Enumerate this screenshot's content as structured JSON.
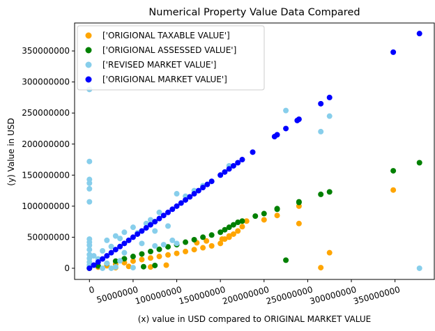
{
  "chart_data": {
    "type": "scatter",
    "title": "Numerical Property Value Data Compared",
    "xlabel": "(x) value in USD compared to ORIGINAL MARKET VALUE",
    "ylabel": "(y) Value in USD",
    "xlim": [
      -17000000,
      395000000
    ],
    "ylim": [
      -18000000,
      395000000
    ],
    "x_ticks": [
      0,
      50000000,
      100000000,
      150000000,
      200000000,
      250000000,
      300000000,
      350000000
    ],
    "x_tick_labels": [
      "0",
      "50000000",
      "100000000",
      "150000000",
      "200000000",
      "250000000",
      "300000000",
      "350000000"
    ],
    "y_ticks": [
      0,
      50000000,
      100000000,
      150000000,
      200000000,
      250000000,
      300000000,
      350000000
    ],
    "y_tick_labels": [
      "0",
      "50000000",
      "100000000",
      "150000000",
      "200000000",
      "250000000",
      "300000000",
      "350000000"
    ],
    "grid": false,
    "legend_position": "top-left",
    "series": [
      {
        "name": "['ORIGIONAL TAXABLE VALUE']",
        "color": "#ffa500",
        "points": [
          [
            0,
            0
          ],
          [
            10000000,
            1800000
          ],
          [
            20000000,
            4000000
          ],
          [
            30000000,
            6500000
          ],
          [
            40000000,
            9000000
          ],
          [
            50000000,
            11500000
          ],
          [
            60000000,
            14000000
          ],
          [
            70000000,
            16500000
          ],
          [
            80000000,
            19000000
          ],
          [
            90000000,
            21500000
          ],
          [
            100000000,
            24000000
          ],
          [
            110000000,
            27000000
          ],
          [
            120000000,
            30000000
          ],
          [
            130000000,
            33000000
          ],
          [
            140000000,
            36000000
          ],
          [
            150000000,
            40000000
          ],
          [
            155000000,
            47000000
          ],
          [
            160000000,
            50000000
          ],
          [
            165000000,
            55000000
          ],
          [
            170000000,
            60000000
          ],
          [
            180000000,
            76000000
          ],
          [
            200000000,
            78000000
          ],
          [
            215000000,
            85000000
          ],
          [
            240000000,
            100000000
          ],
          [
            240000000,
            72000000
          ],
          [
            265000000,
            1000000
          ],
          [
            275000000,
            25000000
          ],
          [
            348000000,
            126000000
          ],
          [
            88000000,
            5000000
          ],
          [
            45000000,
            3000000
          ],
          [
            30000000,
            1000000
          ],
          [
            70000000,
            2000000
          ],
          [
            123000000,
            41000000
          ],
          [
            134000000,
            44000000
          ],
          [
            152000000,
            47000000
          ],
          [
            160000000,
            52000000
          ],
          [
            175000000,
            67000000
          ]
        ]
      },
      {
        "name": "['ORIGIONAL ASSESSED VALUE']",
        "color": "#008000",
        "points": [
          [
            0,
            0
          ],
          [
            10000000,
            3800000
          ],
          [
            20000000,
            7700000
          ],
          [
            30000000,
            11500000
          ],
          [
            40000000,
            15300000
          ],
          [
            50000000,
            19000000
          ],
          [
            60000000,
            23000000
          ],
          [
            70000000,
            27000000
          ],
          [
            80000000,
            30500000
          ],
          [
            90000000,
            34500000
          ],
          [
            100000000,
            38000000
          ],
          [
            110000000,
            42000000
          ],
          [
            120000000,
            46000000
          ],
          [
            130000000,
            50000000
          ],
          [
            140000000,
            53500000
          ],
          [
            150000000,
            58000000
          ],
          [
            155000000,
            62000000
          ],
          [
            160000000,
            66000000
          ],
          [
            165000000,
            70000000
          ],
          [
            170000000,
            74000000
          ],
          [
            175000000,
            76000000
          ],
          [
            190000000,
            84000000
          ],
          [
            200000000,
            88000000
          ],
          [
            215000000,
            96000000
          ],
          [
            215000000,
            95000000
          ],
          [
            240000000,
            107000000
          ],
          [
            240000000,
            106000000
          ],
          [
            265000000,
            119000000
          ],
          [
            275000000,
            123000000
          ],
          [
            348000000,
            157000000
          ],
          [
            378000000,
            170000000
          ],
          [
            225000000,
            13000000
          ],
          [
            75000000,
            4500000
          ],
          [
            62000000,
            2500000
          ]
        ]
      },
      {
        "name": "['REVISED MARKET VALUE']",
        "color": "#87ceeb",
        "points": [
          [
            0,
            288000000
          ],
          [
            0,
            172000000
          ],
          [
            0,
            143000000
          ],
          [
            0,
            137000000
          ],
          [
            0,
            128000000
          ],
          [
            0,
            107000000
          ],
          [
            0,
            47000000
          ],
          [
            0,
            42000000
          ],
          [
            0,
            37000000
          ],
          [
            0,
            30000000
          ],
          [
            0,
            22000000
          ],
          [
            0,
            16000000
          ],
          [
            0,
            10000000
          ],
          [
            0,
            5000000
          ],
          [
            0,
            2000000
          ],
          [
            5000000,
            20000000
          ],
          [
            10000000,
            15000000
          ],
          [
            15000000,
            28000000
          ],
          [
            20000000,
            8000000
          ],
          [
            25000000,
            35000000
          ],
          [
            30000000,
            52000000
          ],
          [
            35000000,
            48000000
          ],
          [
            40000000,
            58000000
          ],
          [
            50000000,
            66000000
          ],
          [
            55000000,
            57000000
          ],
          [
            60000000,
            60000000
          ],
          [
            65000000,
            72000000
          ],
          [
            70000000,
            78000000
          ],
          [
            75000000,
            60000000
          ],
          [
            80000000,
            90000000
          ],
          [
            90000000,
            68000000
          ],
          [
            100000000,
            120000000
          ],
          [
            110000000,
            116000000
          ],
          [
            120000000,
            125000000
          ],
          [
            130000000,
            133000000
          ],
          [
            140000000,
            140000000
          ],
          [
            150000000,
            150000000
          ],
          [
            160000000,
            165000000
          ],
          [
            225000000,
            254000000
          ],
          [
            265000000,
            220000000
          ],
          [
            275000000,
            245000000
          ],
          [
            378000000,
            0
          ],
          [
            30000000,
            2000000
          ],
          [
            40000000,
            25000000
          ],
          [
            50000000,
            1000000
          ],
          [
            60000000,
            40000000
          ],
          [
            75000000,
            36000000
          ],
          [
            85000000,
            38000000
          ],
          [
            95000000,
            45000000
          ],
          [
            100000000,
            40000000
          ],
          [
            20000000,
            45000000
          ],
          [
            25000000,
            0
          ],
          [
            35000000,
            12000000
          ],
          [
            15000000,
            0
          ]
        ]
      },
      {
        "name": "['ORIGIONAL MARKET VALUE']",
        "color": "#0000ff",
        "points": [
          [
            0,
            0
          ],
          [
            5000000,
            5000000
          ],
          [
            10000000,
            10000000
          ],
          [
            15000000,
            15000000
          ],
          [
            20000000,
            20000000
          ],
          [
            25000000,
            25000000
          ],
          [
            30000000,
            30000000
          ],
          [
            35000000,
            35000000
          ],
          [
            40000000,
            40000000
          ],
          [
            45000000,
            45000000
          ],
          [
            50000000,
            50000000
          ],
          [
            55000000,
            55000000
          ],
          [
            60000000,
            60000000
          ],
          [
            65000000,
            65000000
          ],
          [
            70000000,
            70000000
          ],
          [
            75000000,
            75000000
          ],
          [
            80000000,
            80000000
          ],
          [
            85000000,
            85000000
          ],
          [
            90000000,
            90000000
          ],
          [
            95000000,
            95000000
          ],
          [
            100000000,
            100000000
          ],
          [
            105000000,
            105000000
          ],
          [
            110000000,
            110000000
          ],
          [
            115000000,
            115000000
          ],
          [
            120000000,
            120000000
          ],
          [
            125000000,
            125000000
          ],
          [
            130000000,
            130000000
          ],
          [
            135000000,
            135000000
          ],
          [
            140000000,
            140000000
          ],
          [
            150000000,
            150000000
          ],
          [
            155000000,
            155000000
          ],
          [
            160000000,
            160000000
          ],
          [
            165000000,
            165000000
          ],
          [
            170000000,
            170000000
          ],
          [
            175000000,
            175000000
          ],
          [
            187000000,
            187000000
          ],
          [
            212000000,
            212000000
          ],
          [
            215000000,
            215000000
          ],
          [
            225000000,
            225000000
          ],
          [
            238000000,
            238000000
          ],
          [
            240000000,
            240000000
          ],
          [
            265000000,
            265000000
          ],
          [
            275000000,
            275000000
          ],
          [
            348000000,
            348000000
          ],
          [
            378000000,
            378000000
          ]
        ]
      }
    ]
  }
}
